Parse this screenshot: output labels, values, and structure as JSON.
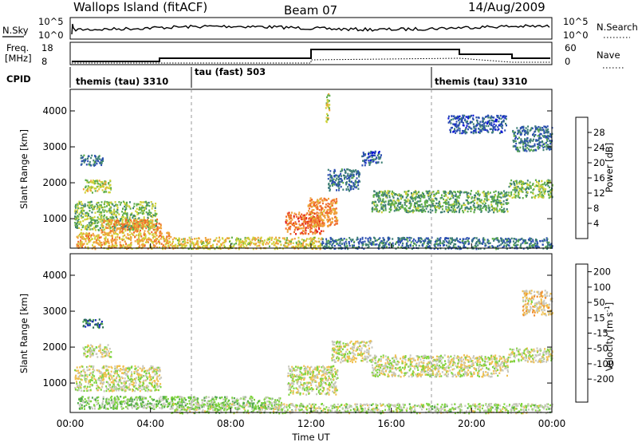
{
  "header": {
    "title": "Wallops Island (fitACF)",
    "beam": "Beam 07",
    "date": "14/Aug/2009"
  },
  "nsky_panel": {
    "label": "N.Sky",
    "ticks_left": [
      "10^5",
      "10^0"
    ],
    "ticks_right": [
      "10^5",
      "10^0"
    ],
    "right_label": "N.Search"
  },
  "freq_panel": {
    "label_line1": "Freq.",
    "label_line2": "[MHz]",
    "ticks_left": [
      "18",
      "8"
    ],
    "ticks_right": [
      "60",
      "0"
    ],
    "right_label": "Nave"
  },
  "cpid_panel": {
    "label": "CPID",
    "segments": [
      {
        "name": "themis (tau) 3310",
        "start_h": 0,
        "end_h": 6
      },
      {
        "name": "tau (fast) 503",
        "start_h": 6,
        "end_h": 18
      },
      {
        "name": "themis (tau) 3310",
        "start_h": 18,
        "end_h": 24
      }
    ]
  },
  "axes": {
    "ylabel": "Slant Range [km]",
    "yticks": [
      "1000",
      "2000",
      "3000",
      "4000"
    ],
    "xlabel": "Time UT",
    "xticks": [
      "00:00",
      "04:00",
      "08:00",
      "12:00",
      "16:00",
      "20:00",
      "00:00"
    ]
  },
  "power_colorbar": {
    "label": "Power [dB]",
    "ticks": [
      "4",
      "8",
      "12",
      "16",
      "20",
      "24",
      "28"
    ],
    "colors": [
      "#0a14d6",
      "#2b4fb0",
      "#3e7f74",
      "#5fae4a",
      "#cfd238",
      "#f0a23a",
      "#ef6a2a",
      "#e01818"
    ]
  },
  "velocity_colorbar": {
    "label": "Velocity [m s",
    "label_sup": "-1",
    "label_end": "]",
    "ticks": [
      "200",
      "100",
      "50",
      "15",
      "-15",
      "-50",
      "-100",
      "-200"
    ],
    "colors": [
      "#1426b8",
      "#2b6e52",
      "#4fa84a",
      "#7ed43e",
      "#c8c8bd",
      "#f0c050",
      "#f08a2a",
      "#e45a1e",
      "#d81010"
    ]
  },
  "chart_data": [
    {
      "type": "heatmap",
      "title": "Power [dB]",
      "xlabel": "Time UT",
      "ylabel": "Slant Range [km]",
      "xlim": [
        0,
        24
      ],
      "ylim": [
        180,
        4600
      ],
      "value_range": [
        0,
        30
      ],
      "scatter_regions": [
        {
          "t": [
            0.2,
            4.3
          ],
          "r": [
            700,
            1500
          ],
          "value": 14
        },
        {
          "t": [
            0.6,
            2.0
          ],
          "r": [
            1750,
            2100
          ],
          "value": 16
        },
        {
          "t": [
            0.5,
            1.6
          ],
          "r": [
            2500,
            2800
          ],
          "value": 8
        },
        {
          "t": [
            0.3,
            5.0
          ],
          "r": [
            180,
            650
          ],
          "value": 20
        },
        {
          "t": [
            1.5,
            4.5
          ],
          "r": [
            650,
            1000
          ],
          "value": 22
        },
        {
          "t": [
            10.7,
            12.6
          ],
          "r": [
            600,
            1200
          ],
          "value": 24
        },
        {
          "t": [
            11.8,
            13.3
          ],
          "r": [
            800,
            1600
          ],
          "value": 22
        },
        {
          "t": [
            12.8,
            14.4
          ],
          "r": [
            1800,
            2400
          ],
          "value": 8
        },
        {
          "t": [
            14.5,
            15.5
          ],
          "r": [
            2500,
            2900
          ],
          "value": 6
        },
        {
          "t": [
            15.0,
            21.8
          ],
          "r": [
            1200,
            1800
          ],
          "value": 12
        },
        {
          "t": [
            21.8,
            24.0
          ],
          "r": [
            1600,
            2100
          ],
          "value": 14
        },
        {
          "t": [
            22.0,
            24.0
          ],
          "r": [
            2900,
            3600
          ],
          "value": 8
        },
        {
          "t": [
            18.8,
            21.7
          ],
          "r": [
            3400,
            3900
          ],
          "value": 6
        },
        {
          "t": [
            5.0,
            12.5
          ],
          "r": [
            180,
            500
          ],
          "value": 18
        },
        {
          "t": [
            12.5,
            24.0
          ],
          "r": [
            180,
            500
          ],
          "value": 8
        },
        {
          "t": [
            12.7,
            12.9
          ],
          "r": [
            3700,
            4500
          ],
          "value": 16
        }
      ]
    },
    {
      "type": "heatmap",
      "title": "Velocity [m s-1]",
      "xlabel": "Time UT",
      "ylabel": "Slant Range [km]",
      "xlim": [
        0,
        24
      ],
      "ylim": [
        180,
        4600
      ],
      "value_range": [
        -200,
        200
      ],
      "scatter_regions": [
        {
          "t": [
            0.2,
            4.5
          ],
          "r": [
            800,
            1500
          ],
          "value": 0
        },
        {
          "t": [
            0.6,
            2.0
          ],
          "r": [
            1750,
            2100
          ],
          "value": 0
        },
        {
          "t": [
            0.6,
            1.6
          ],
          "r": [
            2550,
            2800
          ],
          "value": 150
        },
        {
          "t": [
            0.3,
            10.5
          ],
          "r": [
            300,
            650
          ],
          "value": 40
        },
        {
          "t": [
            10.8,
            13.3
          ],
          "r": [
            700,
            1500
          ],
          "value": 0
        },
        {
          "t": [
            13.0,
            15.0
          ],
          "r": [
            1600,
            2200
          ],
          "value": 0
        },
        {
          "t": [
            15.0,
            21.8
          ],
          "r": [
            1200,
            1800
          ],
          "value": 0
        },
        {
          "t": [
            21.8,
            24.0
          ],
          "r": [
            1600,
            2000
          ],
          "value": 0
        },
        {
          "t": [
            22.5,
            24.0
          ],
          "r": [
            2900,
            3600
          ],
          "value": -30
        },
        {
          "t": [
            5.0,
            24.0
          ],
          "r": [
            180,
            450
          ],
          "value": 20
        }
      ]
    }
  ]
}
